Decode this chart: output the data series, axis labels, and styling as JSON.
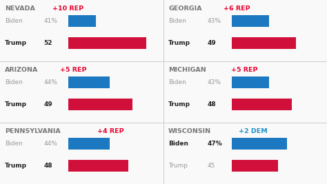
{
  "states": [
    {
      "name": "NEVADA",
      "margin": "+10 REP",
      "margin_color": "#e8002d",
      "biden_pct": 41,
      "biden_label": "41%",
      "trump_pct": 52,
      "trump_label": "52",
      "winner": "REP",
      "col": 0,
      "row": 0
    },
    {
      "name": "GEORGIA",
      "margin": "+6 REP",
      "margin_color": "#e8002d",
      "biden_pct": 43,
      "biden_label": "43%",
      "trump_pct": 49,
      "trump_label": "49",
      "winner": "REP",
      "col": 1,
      "row": 0
    },
    {
      "name": "ARIZONA",
      "margin": "+5 REP",
      "margin_color": "#e8002d",
      "biden_pct": 44,
      "biden_label": "44%",
      "trump_pct": 49,
      "trump_label": "49",
      "winner": "REP",
      "col": 0,
      "row": 1
    },
    {
      "name": "MICHIGAN",
      "margin": "+5 REP",
      "margin_color": "#e8002d",
      "biden_pct": 43,
      "biden_label": "43%",
      "trump_pct": 48,
      "trump_label": "48",
      "winner": "REP",
      "col": 1,
      "row": 1
    },
    {
      "name": "PENNSYLVANIA",
      "margin": "+4 REP",
      "margin_color": "#e8002d",
      "biden_pct": 44,
      "biden_label": "44%",
      "trump_pct": 48,
      "trump_label": "48",
      "winner": "REP",
      "col": 0,
      "row": 2
    },
    {
      "name": "WISCONSIN",
      "margin": "+2 DEM",
      "margin_color": "#1e90c8",
      "biden_pct": 47,
      "biden_label": "47%",
      "trump_pct": 45,
      "trump_label": "45",
      "winner": "DEM",
      "col": 1,
      "row": 2
    }
  ],
  "blue_color": "#1c78c0",
  "red_color": "#d0103a",
  "bg_color": "#f9f9f9",
  "text_dark": "#222222",
  "text_gray": "#999999",
  "state_name_color": "#777777",
  "bar_max": 55,
  "bar_min": 35,
  "figw": 4.74,
  "figh": 2.67,
  "dpi": 100
}
